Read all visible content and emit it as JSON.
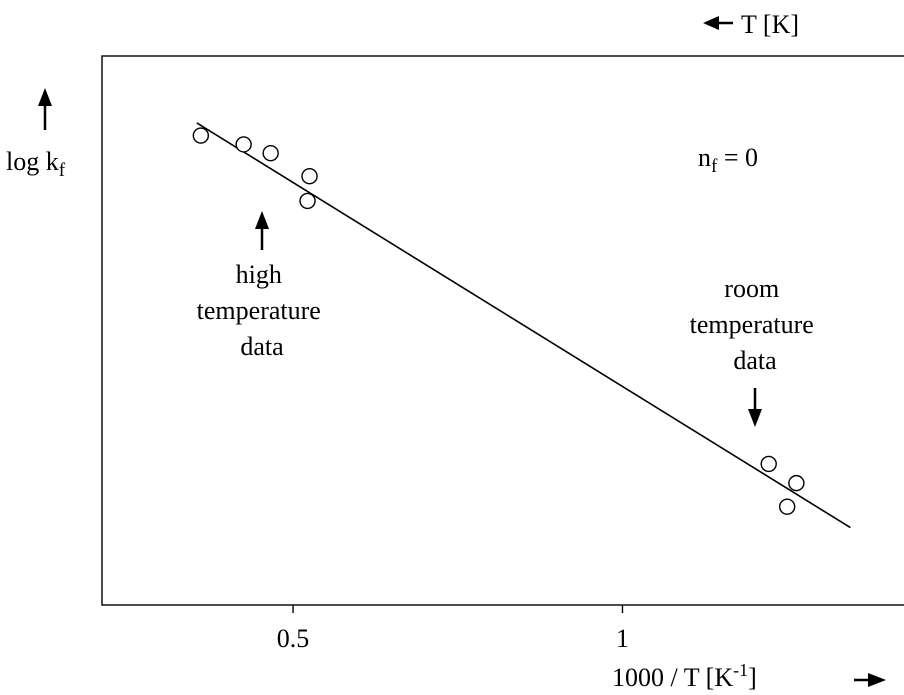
{
  "chart_data": {
    "type": "scatter",
    "xlabel": {
      "main": "1000 / T [K",
      "sup": "-1",
      "tail": "]"
    },
    "ylabel": {
      "main": "log k",
      "sub": "f"
    },
    "top_axis_label": "T [K]",
    "x_ticks": [
      0.5,
      1
    ],
    "x_tick_labels": [
      "0.5",
      "1"
    ],
    "xlim": [
      0.21,
      1.485
    ],
    "ylim": [
      0,
      1
    ],
    "y_tick_labels_shown": false,
    "grid": false,
    "points": [
      {
        "x": 0.36,
        "y": 0.855
      },
      {
        "x": 0.425,
        "y": 0.839
      },
      {
        "x": 0.466,
        "y": 0.823
      },
      {
        "x": 0.525,
        "y": 0.781
      },
      {
        "x": 0.522,
        "y": 0.736
      },
      {
        "x": 1.222,
        "y": 0.257
      },
      {
        "x": 1.264,
        "y": 0.222
      },
      {
        "x": 1.25,
        "y": 0.179
      }
    ],
    "fit_line": {
      "x": [
        0.354,
        1.346
      ],
      "y": [
        0.878,
        0.141
      ]
    },
    "annotations": [
      {
        "id": "nf",
        "main": "n",
        "sub": "f",
        "tail": " = 0"
      },
      {
        "id": "high",
        "lines": [
          "high",
          "temperature",
          "data"
        ]
      },
      {
        "id": "room",
        "lines": [
          "room",
          "temperature",
          "data"
        ]
      }
    ]
  }
}
